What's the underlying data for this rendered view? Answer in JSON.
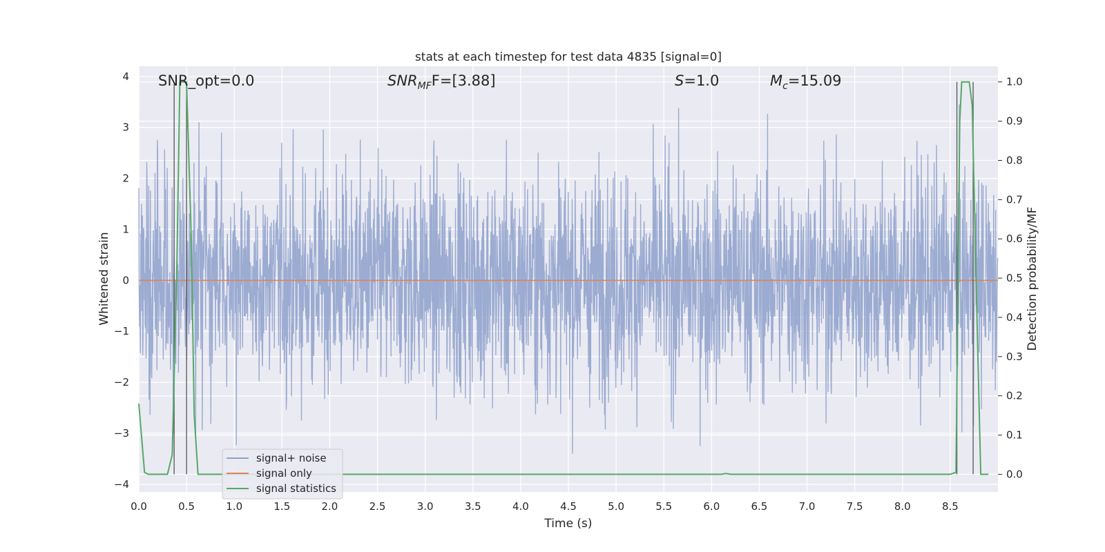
{
  "chart_data": {
    "type": "line",
    "title": "stats at each timestep for test data 4835 [signal=0]",
    "xlabel": "Time (s)",
    "ylabel": "Whitened strain",
    "y2label": "Detection probability/MF",
    "xlim": [
      0,
      9.0
    ],
    "ylim": [
      -4.15,
      4.2
    ],
    "y2lim": [
      -0.045,
      1.04
    ],
    "x_ticks": [
      "0.0",
      "0.5",
      "1.0",
      "1.5",
      "2.0",
      "2.5",
      "3.0",
      "3.5",
      "4.0",
      "4.5",
      "5.0",
      "5.5",
      "6.0",
      "6.5",
      "7.0",
      "7.5",
      "8.0",
      "8.5"
    ],
    "y_ticks": [
      "4",
      "3",
      "2",
      "1",
      "0",
      "−1",
      "−2",
      "−3",
      "−4"
    ],
    "y2_ticks": [
      "1.0",
      "0.9",
      "0.8",
      "0.7",
      "0.6",
      "0.5",
      "0.4",
      "0.3",
      "0.2",
      "0.1",
      "0.0"
    ],
    "grid": true,
    "legend_position": "lower-left",
    "annotations": {
      "snr_opt": "SNR_opt=0.0",
      "snr_mf_sym": "SNR",
      "snr_mf_sub": "MF",
      "snr_mf_rest": "F=[3.88]",
      "s_sym": "S",
      "s_rest": "=1.0",
      "mc_sym": "M",
      "mc_sub": "c",
      "mc_rest": "=15.09"
    },
    "series": [
      {
        "name": "signal+ noise",
        "color": "#8da0cb",
        "axis": "left",
        "description_range": [
          -3.8,
          3.95
        ],
        "noise_envelope": {
          "typical_abs": 1.7,
          "max": 3.95,
          "min": -3.8
        }
      },
      {
        "name": "signal only",
        "color": "#dd8452",
        "axis": "left",
        "x": [
          0,
          9.0
        ],
        "y": [
          0,
          0
        ]
      },
      {
        "name": "signal statistics",
        "color": "#55a868",
        "axis": "right",
        "x": [
          0,
          0.06,
          0.1,
          0.3,
          0.35,
          0.4,
          0.43,
          0.47,
          0.5,
          0.55,
          0.58,
          0.62,
          1.0,
          6.1,
          6.15,
          6.2,
          8.5,
          8.56,
          8.6,
          8.62,
          8.65,
          8.7,
          8.73,
          8.78,
          8.82,
          8.86,
          8.9
        ],
        "y": [
          0.18,
          0.005,
          0.0,
          0.0,
          0.05,
          0.55,
          1.0,
          1.0,
          1.0,
          0.6,
          0.15,
          0.0,
          0.0,
          0.0,
          0.002,
          0.0,
          0.0,
          0.005,
          0.9,
          1.0,
          1.0,
          1.0,
          0.94,
          0.4,
          0.0,
          0.0,
          0.0
        ]
      }
    ],
    "vertical_markers": [
      0.37,
      0.5,
      8.57,
      8.74
    ]
  }
}
